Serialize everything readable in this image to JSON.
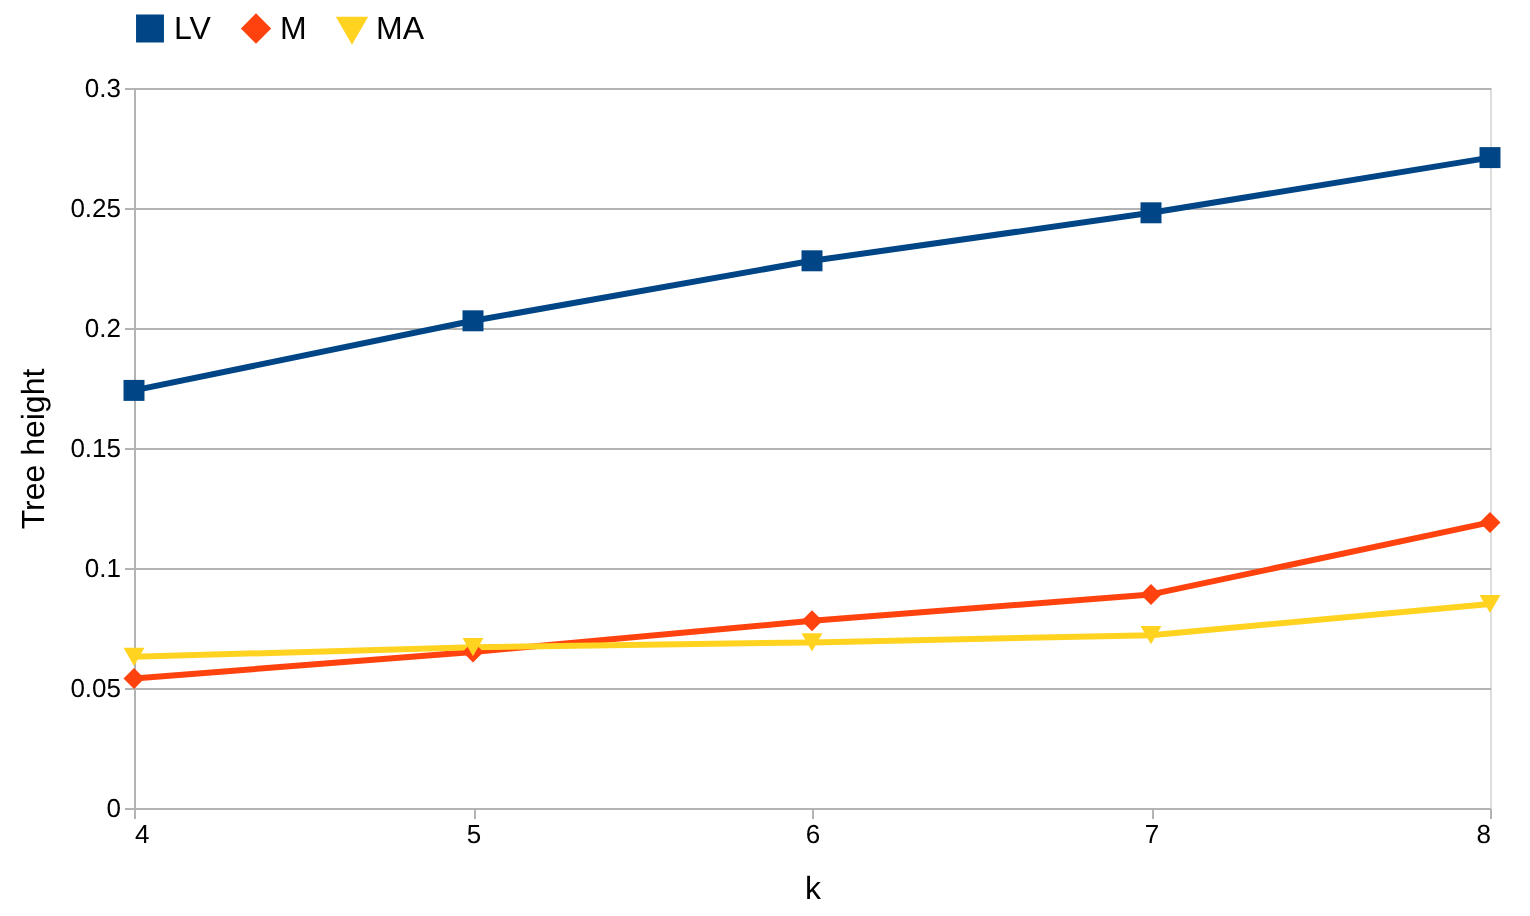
{
  "chart_data": {
    "type": "line",
    "xlabel": "k",
    "ylabel": "Tree height",
    "x": [
      4,
      5,
      6,
      7,
      8
    ],
    "xlim": [
      4,
      8
    ],
    "xticks": [
      4,
      5,
      6,
      7,
      8
    ],
    "ylim": [
      0,
      0.3
    ],
    "yticks": [
      0,
      0.05,
      0.1,
      0.15,
      0.2,
      0.25,
      0.3
    ],
    "grid": "y",
    "legend": "top",
    "line_style": "solid",
    "series": [
      {
        "name": "LV",
        "color": "#004586",
        "marker": "square",
        "values": [
          0.174,
          0.203,
          0.228,
          0.248,
          0.271
        ]
      },
      {
        "name": "M",
        "color": "#ff420e",
        "marker": "diamond",
        "values": [
          0.054,
          0.065,
          0.078,
          0.089,
          0.119
        ]
      },
      {
        "name": "MA",
        "color": "#ffd320",
        "marker": "triangle-down",
        "values": [
          0.063,
          0.067,
          0.069,
          0.072,
          0.085
        ]
      }
    ]
  }
}
